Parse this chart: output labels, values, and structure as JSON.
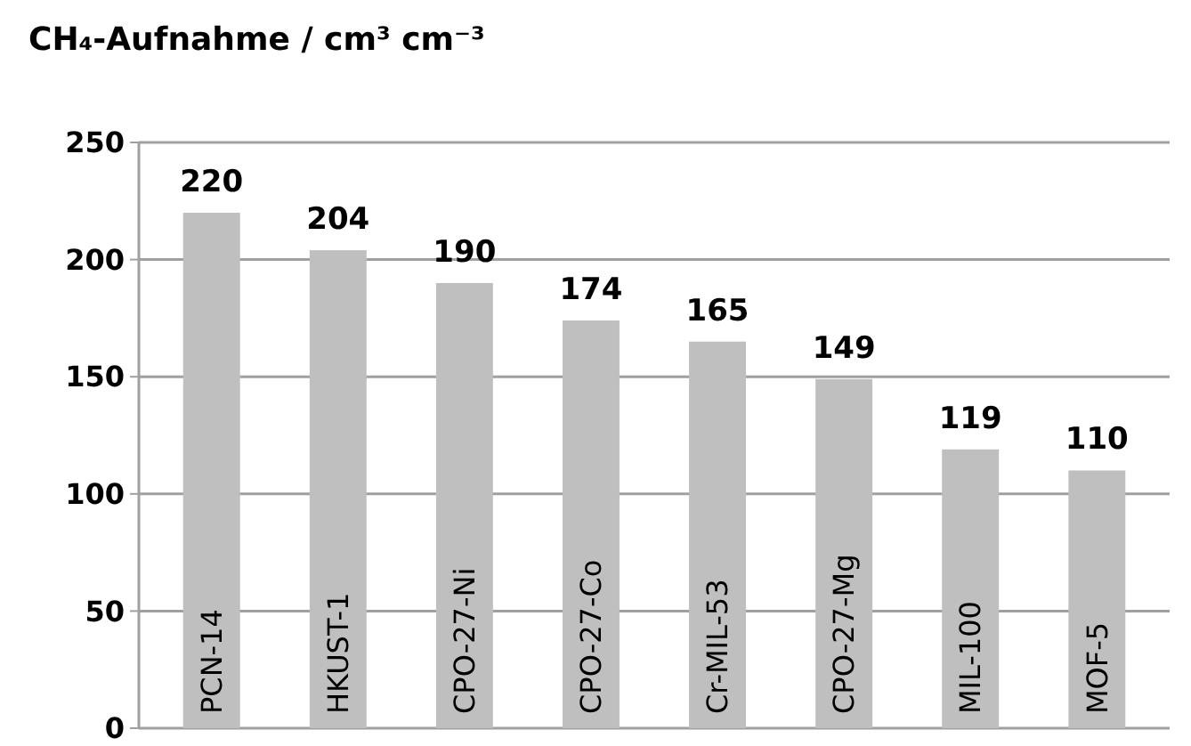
{
  "chart_data": {
    "type": "bar",
    "title": "CH₄-Aufnahme / cm³ cm⁻³",
    "categories": [
      "PCN-14",
      "HKUST-1",
      "CPO-27-Ni",
      "CPO-27-Co",
      "Cr-MIL-53",
      "CPO-27-Mg",
      "MIL-100",
      "MOF-5"
    ],
    "values": [
      220,
      204,
      190,
      174,
      165,
      149,
      119,
      110
    ],
    "color": "#bfbfbf",
    "ylim": [
      0,
      250
    ],
    "yticks": [
      0,
      50,
      100,
      150,
      200,
      250
    ],
    "grid": "y",
    "data_labels": true
  }
}
